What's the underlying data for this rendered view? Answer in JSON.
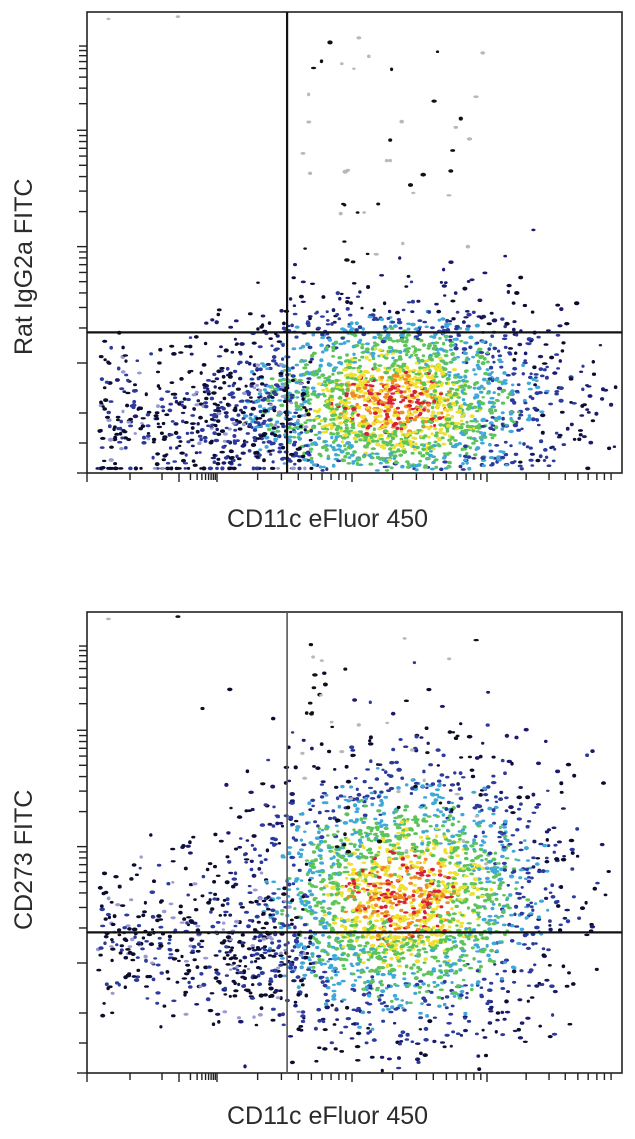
{
  "chart_data": [
    {
      "type": "scatter",
      "subtype": "flow-cytometry-density-dot-plot",
      "title": "",
      "xlabel": "CD11c eFluor 450",
      "ylabel": "Rat IgG2a FITC",
      "x_scale": "log (biexponential), no tick labels",
      "y_scale": "log (biexponential), no tick labels",
      "grid": false,
      "legend": null,
      "quadrant_gates": {
        "x_gate_fraction": 0.374,
        "y_gate_fraction": 0.305
      },
      "density_colormap": [
        "#1a1a6e",
        "#2b3a9c",
        "#3fa8d8",
        "#5cc45a",
        "#f0e030",
        "#f08a24",
        "#d8203a"
      ],
      "population": {
        "main_cluster_center_fraction": [
          0.57,
          0.15
        ],
        "spread_fraction": [
          0.16,
          0.11
        ],
        "description": "Main population centered right of x gate, below y gate (isotype control, mostly negative)"
      }
    },
    {
      "type": "scatter",
      "subtype": "flow-cytometry-density-dot-plot",
      "title": "",
      "xlabel": "CD11c eFluor 450",
      "ylabel": "CD273 FITC",
      "x_scale": "log (biexponential), no tick labels",
      "y_scale": "log (biexponential), no tick labels",
      "grid": false,
      "legend": null,
      "quadrant_gates": {
        "x_gate_fraction": 0.374,
        "y_gate_fraction": 0.305
      },
      "density_colormap": [
        "#1a1a6e",
        "#2b3a9c",
        "#3fa8d8",
        "#5cc45a",
        "#f0e030",
        "#f08a24",
        "#d8203a"
      ],
      "population": {
        "main_cluster_center_fraction": [
          0.59,
          0.38
        ],
        "spread_fraction": [
          0.15,
          0.15
        ],
        "description": "Main population shifted upward above y gate (CD273 positive CD11c+ cells)"
      }
    }
  ],
  "panels": [
    {
      "ylabel": "Rat IgG2a FITC",
      "xlabel": "CD11c eFluor 450"
    },
    {
      "ylabel": "CD273 FITC",
      "xlabel": "CD11c eFluor 450"
    }
  ]
}
